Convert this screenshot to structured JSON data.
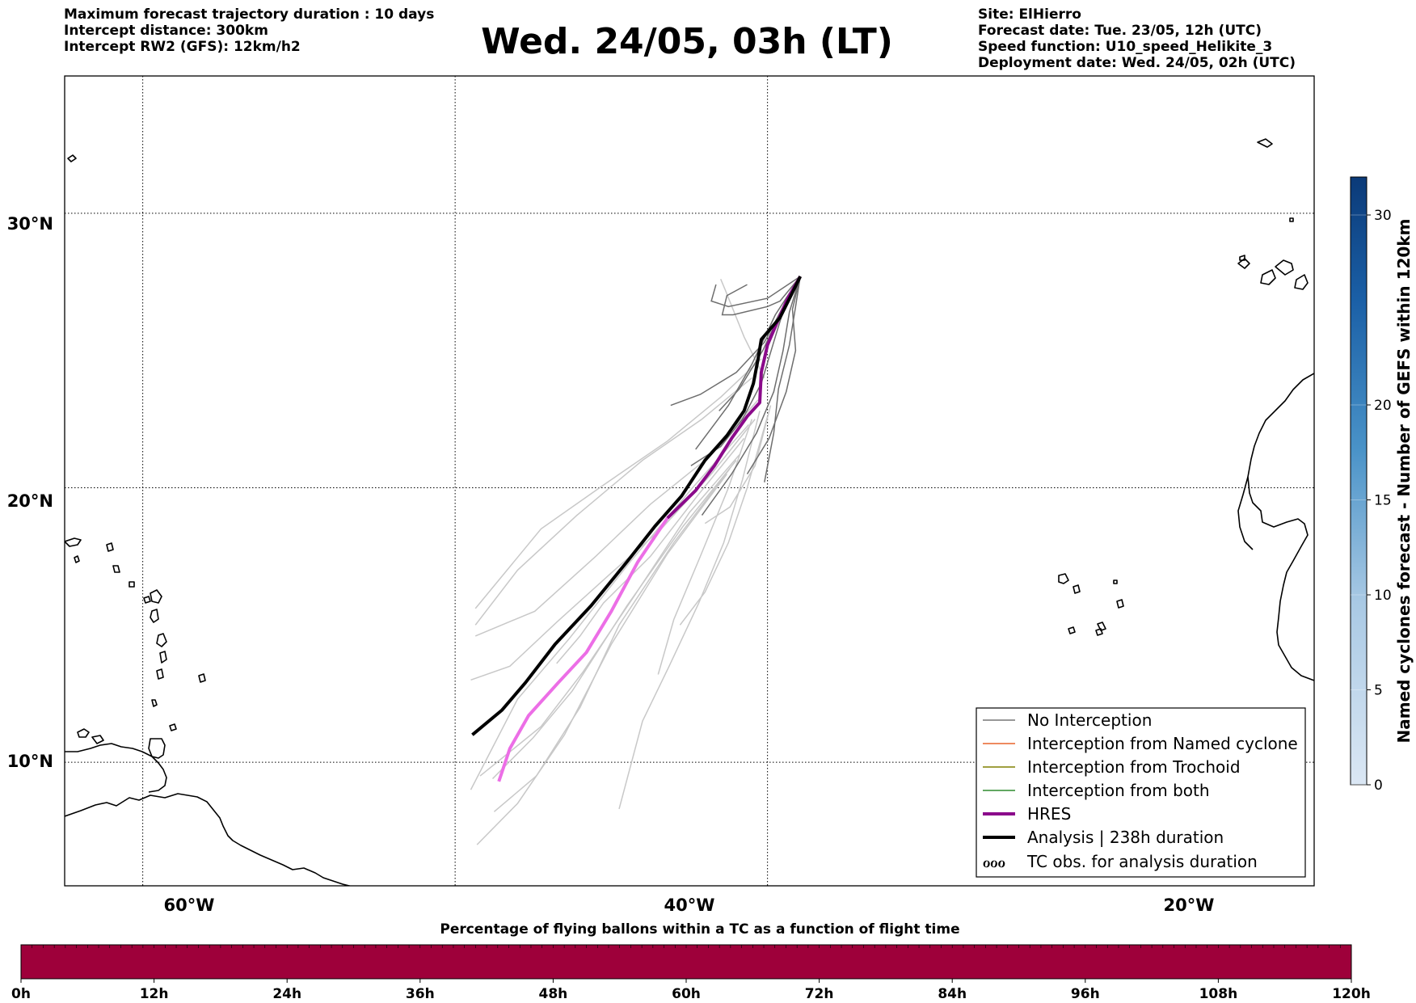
{
  "header": {
    "left_lines": [
      "Maximum forecast trajectory duration : 10 days",
      "Intercept distance: 300km",
      "Intercept RW2 (GFS):  12km/h2"
    ],
    "title": "Wed. 24/05, 03h (LT)",
    "right_lines": [
      "Site: ElHierro",
      "Forecast date: Tue. 23/05, 12h (UTC)",
      "Speed function: U10_speed_Helikite_3",
      "Deployment date: Wed. 24/05, 02h (UTC)"
    ]
  },
  "map": {
    "lon_range": [
      -65,
      15
    ],
    "lat_range": [
      5.5,
      35
    ],
    "lat_labels": [
      "30°N",
      "20°N",
      "10°N"
    ],
    "lon_labels": [
      "60°W",
      "40°W",
      "20°W"
    ],
    "grid_lats": [
      30,
      20,
      10
    ],
    "grid_lons": [
      -60,
      -40,
      -20
    ],
    "site": {
      "name": "ElHierro",
      "lon": -17.9,
      "lat": 27.7
    }
  },
  "legend": {
    "items": [
      {
        "label": "No Interception",
        "color": "#777777",
        "style": "thin"
      },
      {
        "label": "Interception from Named cyclone",
        "color": "#e8632a",
        "style": "thin"
      },
      {
        "label": "Interception from Trochoid",
        "color": "#808000",
        "style": "thin"
      },
      {
        "label": "Interception from both",
        "color": "#2e8b2e",
        "style": "thin"
      },
      {
        "label": "HRES",
        "color": "#8b0a8b",
        "style": "thick"
      },
      {
        "label": "Analysis | 238h duration",
        "color": "#000000",
        "style": "thick"
      },
      {
        "label": "TC obs. for analysis duration",
        "color": "#000000",
        "style": "symbol",
        "symbol": "ℴℴℴ"
      }
    ]
  },
  "trajectories": {
    "analysis": [
      [
        -17.9,
        27.7
      ],
      [
        -18.5,
        27.0
      ],
      [
        -19.2,
        26.2
      ],
      [
        -19.8,
        25.8
      ],
      [
        -20.4,
        25.4
      ],
      [
        -20.6,
        24.7
      ],
      [
        -20.9,
        23.8
      ],
      [
        -21.5,
        22.8
      ],
      [
        -22.6,
        21.9
      ],
      [
        -24.0,
        21.0
      ],
      [
        -25.5,
        19.7
      ],
      [
        -27.2,
        18.6
      ],
      [
        -29.0,
        17.3
      ],
      [
        -31.3,
        15.7
      ],
      [
        -33.6,
        14.3
      ],
      [
        -35.5,
        12.9
      ],
      [
        -37.0,
        11.9
      ],
      [
        -38.9,
        11.0
      ]
    ],
    "hres": [
      [
        -17.9,
        27.7
      ],
      [
        -18.7,
        26.9
      ],
      [
        -19.4,
        26.0
      ],
      [
        -20.0,
        25.2
      ],
      [
        -20.4,
        24.2
      ],
      [
        -20.5,
        23.1
      ],
      [
        -21.3,
        22.6
      ],
      [
        -22.3,
        21.8
      ],
      [
        -23.4,
        20.8
      ],
      [
        -24.6,
        19.9
      ],
      [
        -26.4,
        18.9
      ],
      [
        -28.3,
        17.3
      ],
      [
        -30.0,
        15.5
      ],
      [
        -31.6,
        14.0
      ],
      [
        -33.4,
        12.9
      ],
      [
        -35.3,
        11.7
      ],
      [
        -36.5,
        10.5
      ],
      [
        -37.2,
        9.3
      ]
    ],
    "hres_pink_from_index": 10,
    "ensemble_dark": [
      [
        [
          -17.9,
          27.7
        ],
        [
          -19.5,
          26.3
        ],
        [
          -21.0,
          24.5
        ],
        [
          -22.5,
          23.0
        ],
        [
          -24.6,
          21.4
        ]
      ],
      [
        [
          -17.9,
          27.7
        ],
        [
          -18.8,
          26.8
        ],
        [
          -19.5,
          25.5
        ],
        [
          -20.4,
          23.8
        ],
        [
          -21.6,
          22.5
        ],
        [
          -23.0,
          21.5
        ],
        [
          -24.9,
          20.8
        ]
      ],
      [
        [
          -17.9,
          27.7
        ],
        [
          -18.6,
          26.4
        ],
        [
          -19.0,
          25.0
        ],
        [
          -19.6,
          23.5
        ],
        [
          -20.7,
          22.0
        ],
        [
          -22.3,
          20.5
        ],
        [
          -24.2,
          19.0
        ]
      ],
      [
        [
          -17.9,
          27.7
        ],
        [
          -20.0,
          26.9
        ],
        [
          -22.5,
          26.6
        ],
        [
          -23.6,
          26.8
        ],
        [
          -23.3,
          27.4
        ]
      ],
      [
        [
          -17.9,
          27.7
        ],
        [
          -19.2,
          26.8
        ],
        [
          -20.0,
          26.6
        ],
        [
          -22.2,
          26.3
        ],
        [
          -22.9,
          26.3
        ],
        [
          -22.6,
          27.0
        ],
        [
          -21.3,
          27.4
        ]
      ],
      [
        [
          -17.9,
          27.7
        ],
        [
          -18.4,
          26.5
        ],
        [
          -18.2,
          25.0
        ],
        [
          -18.8,
          23.5
        ],
        [
          -19.9,
          21.8
        ],
        [
          -21.3,
          20.5
        ]
      ],
      [
        [
          -17.9,
          27.7
        ],
        [
          -19.0,
          26.6
        ],
        [
          -20.2,
          25.3
        ],
        [
          -22.0,
          24.2
        ],
        [
          -24.3,
          23.4
        ],
        [
          -26.2,
          23.0
        ]
      ],
      [
        [
          -17.9,
          27.7
        ],
        [
          -18.2,
          26.6
        ],
        [
          -18.6,
          25.2
        ],
        [
          -19.3,
          23.6
        ],
        [
          -19.6,
          22.0
        ],
        [
          -20.2,
          20.2
        ]
      ],
      [
        [
          -17.9,
          27.7
        ],
        [
          -18.9,
          26.7
        ],
        [
          -20.3,
          25.0
        ],
        [
          -21.8,
          23.6
        ],
        [
          -23.1,
          22.8
        ]
      ]
    ],
    "ensemble_light": [
      [
        [
          -20.4,
          24.7
        ],
        [
          -23.0,
          23.3
        ],
        [
          -26.4,
          21.7
        ],
        [
          -30.5,
          20.1
        ],
        [
          -34.5,
          18.5
        ],
        [
          -38.7,
          15.6
        ]
      ],
      [
        [
          -21.0,
          24.0
        ],
        [
          -24.2,
          22.5
        ],
        [
          -28.0,
          21.0
        ],
        [
          -32.2,
          19.0
        ],
        [
          -36.0,
          17.0
        ],
        [
          -38.7,
          15.0
        ]
      ],
      [
        [
          -20.6,
          23.2
        ],
        [
          -24.0,
          21.0
        ],
        [
          -27.5,
          19.4
        ],
        [
          -31.0,
          17.5
        ],
        [
          -34.9,
          15.5
        ],
        [
          -38.7,
          14.6
        ]
      ],
      [
        [
          -20.8,
          22.5
        ],
        [
          -23.6,
          20.5
        ],
        [
          -26.8,
          18.5
        ],
        [
          -30.0,
          16.9
        ],
        [
          -33.5,
          15.1
        ],
        [
          -36.5,
          13.5
        ],
        [
          -39.0,
          13.0
        ]
      ],
      [
        [
          -21.5,
          21.8
        ],
        [
          -24.5,
          19.7
        ],
        [
          -27.5,
          17.5
        ],
        [
          -30.5,
          15.8
        ],
        [
          -32.0,
          14.6
        ],
        [
          -33.5,
          13.6
        ]
      ],
      [
        [
          -21.2,
          22.3
        ],
        [
          -24.8,
          20.0
        ],
        [
          -28.8,
          17.3
        ],
        [
          -32.7,
          14.5
        ],
        [
          -36.0,
          12.3
        ],
        [
          -39.0,
          9.0
        ]
      ],
      [
        [
          -21.8,
          21.2
        ],
        [
          -25.0,
          19.1
        ],
        [
          -28.6,
          16.0
        ],
        [
          -31.8,
          13.3
        ],
        [
          -34.5,
          11.3
        ],
        [
          -38.4,
          9.5
        ]
      ],
      [
        [
          -22.0,
          21.0
        ],
        [
          -25.4,
          18.6
        ],
        [
          -29.0,
          15.7
        ],
        [
          -32.5,
          12.6
        ],
        [
          -35.0,
          10.9
        ],
        [
          -37.6,
          9.4
        ]
      ],
      [
        [
          -22.4,
          20.7
        ],
        [
          -26.0,
          18.0
        ],
        [
          -29.5,
          15.0
        ],
        [
          -32.0,
          12.0
        ],
        [
          -34.8,
          9.5
        ],
        [
          -37.5,
          8.2
        ]
      ],
      [
        [
          -22.6,
          20.5
        ],
        [
          -26.4,
          17.6
        ],
        [
          -30.0,
          14.3
        ],
        [
          -33.0,
          11.0
        ],
        [
          -36.0,
          8.5
        ],
        [
          -38.6,
          7.0
        ]
      ],
      [
        [
          -21.0,
          22.5
        ],
        [
          -22.5,
          20.0
        ],
        [
          -24.3,
          17.5
        ],
        [
          -26.0,
          15.2
        ],
        [
          -27.0,
          13.2
        ]
      ],
      [
        [
          -20.5,
          22.8
        ],
        [
          -21.6,
          20.3
        ],
        [
          -22.8,
          18.0
        ],
        [
          -24.4,
          15.8
        ],
        [
          -26.3,
          13.5
        ],
        [
          -28.0,
          11.5
        ],
        [
          -29.5,
          8.3
        ]
      ],
      [
        [
          -20.0,
          22.6
        ],
        [
          -21.3,
          20.0
        ],
        [
          -22.5,
          18.0
        ],
        [
          -24.0,
          16.2
        ],
        [
          -25.6,
          15.0
        ]
      ],
      [
        [
          -20.2,
          24.0
        ],
        [
          -21.5,
          25.5
        ],
        [
          -22.7,
          27.2
        ],
        [
          -23.0,
          27.6
        ]
      ],
      [
        [
          -19.8,
          23.0
        ],
        [
          -20.8,
          20.8
        ],
        [
          -22.4,
          19.3
        ],
        [
          -24.0,
          18.7
        ]
      ]
    ]
  },
  "colorbar_right": {
    "title": "Named cyclones forecast - Number of GEFS within 120km",
    "ticks": [
      "0",
      "5",
      "10",
      "15",
      "20",
      "30"
    ],
    "tick_values": [
      0,
      5,
      10,
      15,
      20,
      30
    ],
    "range": [
      0,
      32
    ],
    "color_low": "#d6e4f3",
    "color_high": "#0b3a78"
  },
  "colorbar_bottom": {
    "title": "Percentage of flying ballons within a TC as a function of flight time",
    "ticks": [
      "0h",
      "12h",
      "24h",
      "36h",
      "48h",
      "60h",
      "72h",
      "84h",
      "96h",
      "108h",
      "120h"
    ],
    "tick_values": [
      0,
      12,
      24,
      36,
      48,
      60,
      72,
      84,
      96,
      108,
      120
    ],
    "fill_color": "#9e003a"
  }
}
